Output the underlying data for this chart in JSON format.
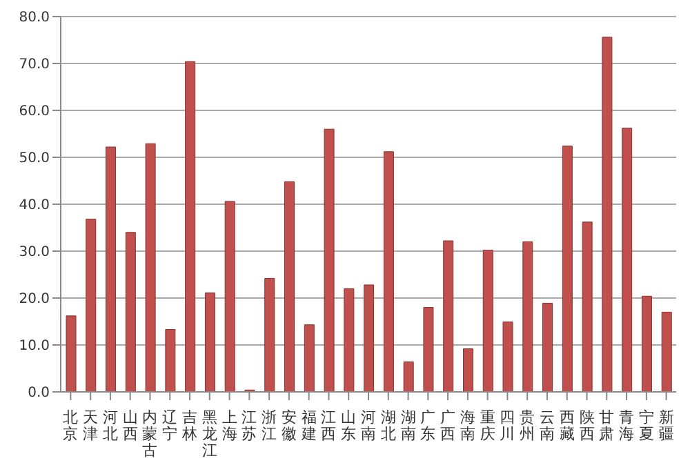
{
  "chart_data": {
    "type": "bar",
    "categories": [
      "北京",
      "天津",
      "河北",
      "山西",
      "内蒙古",
      "辽宁",
      "吉林",
      "黑龙江",
      "上海",
      "江苏",
      "浙江",
      "安徽",
      "福建",
      "江西",
      "山东",
      "河南",
      "湖北",
      "湖南",
      "广东",
      "广西",
      "海南",
      "重庆",
      "四川",
      "贵州",
      "云南",
      "西藏",
      "陕西",
      "甘肃",
      "青海",
      "宁夏",
      "新疆"
    ],
    "values": [
      16.2,
      36.8,
      52.2,
      34.0,
      52.9,
      13.3,
      70.4,
      21.1,
      40.6,
      0.4,
      24.2,
      44.8,
      14.3,
      56.0,
      22.0,
      22.8,
      51.2,
      6.4,
      18.0,
      32.2,
      9.2,
      30.2,
      14.9,
      32.0,
      18.9,
      52.4,
      36.2,
      75.6,
      56.2,
      20.4,
      17.0
    ],
    "color": "#c0504d",
    "ylim": [
      0,
      80
    ],
    "yticks": [
      {
        "value": 0,
        "label": "0.0"
      },
      {
        "value": 10,
        "label": "10.0"
      },
      {
        "value": 20,
        "label": "20.0"
      },
      {
        "value": 30,
        "label": "30.0"
      },
      {
        "value": 40,
        "label": "40.0"
      },
      {
        "value": 50,
        "label": "50.0"
      },
      {
        "value": 60,
        "label": "60.0"
      },
      {
        "value": 70,
        "label": "70.0"
      },
      {
        "value": 80,
        "label": "80.0"
      }
    ],
    "grid": "y"
  }
}
